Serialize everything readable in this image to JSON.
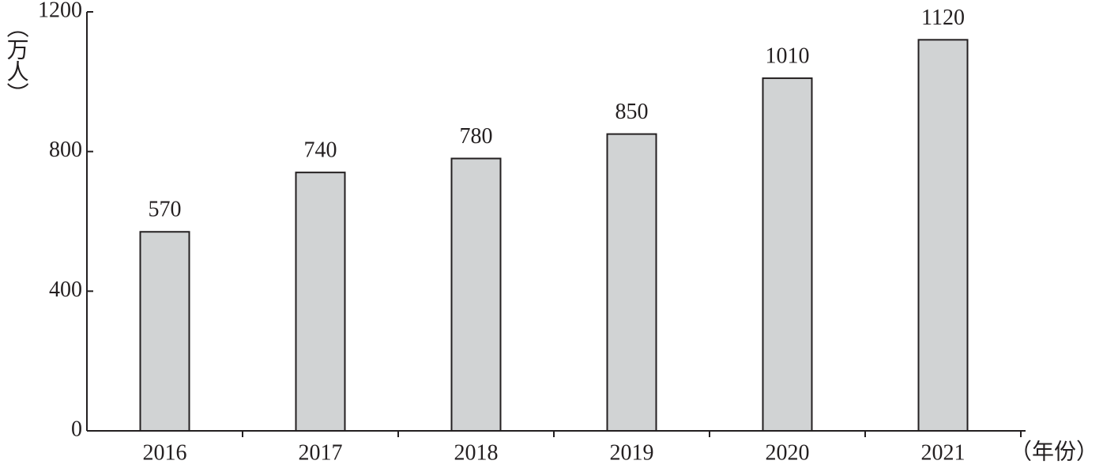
{
  "chart_data": {
    "type": "bar",
    "y_label": "（万人）",
    "x_label": "（年份）",
    "categories": [
      "2016",
      "2017",
      "2018",
      "2019",
      "2020",
      "2021"
    ],
    "values": [
      570,
      740,
      780,
      850,
      1010,
      1120
    ],
    "color": "#d1d3d4",
    "ylim": [
      0,
      1200
    ],
    "yticks": [
      0,
      400,
      800,
      1200
    ],
    "grid": false
  }
}
